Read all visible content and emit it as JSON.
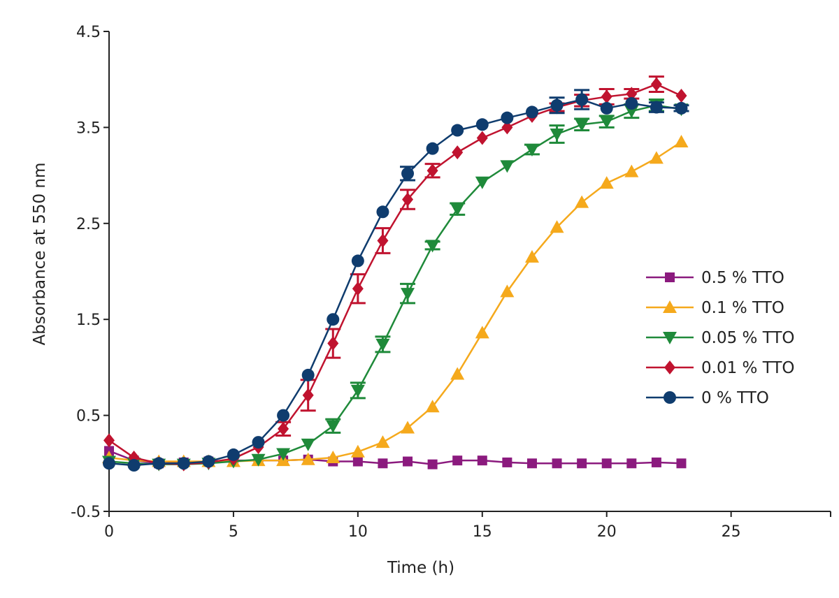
{
  "chart_data": {
    "type": "line",
    "xlabel": "Time (h)",
    "ylabel": "Absorbance at 550 nm",
    "xlim": [
      0,
      29
    ],
    "ylim": [
      -0.5,
      4.5
    ],
    "x_ticks": [
      "0",
      "5",
      "10",
      "15",
      "20",
      "25"
    ],
    "y_ticks": [
      "-0.5",
      "0.5",
      "1.5",
      "2.5",
      "3.5",
      "4.5"
    ],
    "grid": false,
    "legend_position": "right",
    "series": [
      {
        "name": "0.5 % TTO",
        "color": "#8B1A7E",
        "marker": "square",
        "x": [
          0,
          1,
          2,
          3,
          4,
          5,
          6,
          7,
          8,
          9,
          10,
          11,
          12,
          13,
          14,
          15,
          16,
          17,
          18,
          19,
          20,
          21,
          22,
          23
        ],
        "y": [
          0.13,
          0.03,
          0.0,
          0.01,
          0.02,
          0.03,
          0.03,
          0.03,
          0.04,
          0.02,
          0.02,
          0.0,
          0.02,
          -0.01,
          0.03,
          0.03,
          0.01,
          0.0,
          0.0,
          0.0,
          0.0,
          0.0,
          0.01,
          0.0
        ],
        "err": [
          0,
          0,
          0,
          0,
          0,
          0,
          0,
          0,
          0,
          0,
          0,
          0,
          0,
          0,
          0,
          0,
          0,
          0,
          0,
          0,
          0,
          0,
          0,
          0
        ]
      },
      {
        "name": "0.1 % TTO",
        "color": "#F5A91C",
        "marker": "triangle-up",
        "x": [
          0,
          1,
          2,
          3,
          4,
          5,
          6,
          7,
          8,
          9,
          10,
          11,
          12,
          13,
          14,
          15,
          16,
          17,
          18,
          19,
          20,
          21,
          22,
          23
        ],
        "y": [
          0.06,
          0.03,
          0.02,
          0.02,
          0.02,
          0.02,
          0.03,
          0.03,
          0.04,
          0.06,
          0.12,
          0.22,
          0.37,
          0.59,
          0.93,
          1.36,
          1.79,
          2.15,
          2.46,
          2.72,
          2.92,
          3.04,
          3.18,
          3.35
        ],
        "err": [
          0,
          0,
          0,
          0,
          0,
          0,
          0,
          0,
          0,
          0,
          0,
          0,
          0,
          0,
          0,
          0,
          0,
          0,
          0,
          0,
          0,
          0,
          0,
          0
        ]
      },
      {
        "name": "0.05 % TTO",
        "color": "#1F8A3A",
        "marker": "triangle-down",
        "x": [
          0,
          1,
          2,
          3,
          4,
          5,
          6,
          7,
          8,
          9,
          10,
          11,
          12,
          13,
          14,
          15,
          16,
          17,
          18,
          19,
          20,
          21,
          22,
          23
        ],
        "y": [
          0.02,
          0.0,
          -0.01,
          -0.01,
          0.0,
          0.02,
          0.04,
          0.1,
          0.2,
          0.39,
          0.76,
          1.24,
          1.77,
          2.27,
          2.65,
          2.93,
          3.1,
          3.27,
          3.43,
          3.53,
          3.56,
          3.67,
          3.73,
          3.69
        ],
        "err": [
          0,
          0,
          0,
          0,
          0,
          0,
          0,
          0,
          0,
          0.07,
          0.08,
          0.08,
          0.1,
          0.04,
          0.06,
          0,
          0,
          0.05,
          0.09,
          0.06,
          0.06,
          0.07,
          0.06,
          0
        ]
      },
      {
        "name": "0.01 % TTO",
        "color": "#C0132F",
        "marker": "diamond",
        "x": [
          0,
          1,
          2,
          3,
          4,
          5,
          6,
          7,
          8,
          9,
          10,
          11,
          12,
          13,
          14,
          15,
          16,
          17,
          18,
          19,
          20,
          21,
          22,
          23
        ],
        "y": [
          0.24,
          0.06,
          0.0,
          -0.01,
          0.01,
          0.05,
          0.17,
          0.36,
          0.71,
          1.25,
          1.82,
          2.32,
          2.75,
          3.05,
          3.24,
          3.39,
          3.5,
          3.62,
          3.71,
          3.78,
          3.82,
          3.85,
          3.95,
          3.83
        ],
        "err": [
          0,
          0,
          0,
          0,
          0,
          0,
          0,
          0.07,
          0.16,
          0.15,
          0.15,
          0.13,
          0.1,
          0.07,
          0,
          0,
          0,
          0,
          0.04,
          0.06,
          0.08,
          0.05,
          0.08,
          0
        ]
      },
      {
        "name": "0 % TTO",
        "color": "#0F3C6E",
        "marker": "circle",
        "x": [
          0,
          1,
          2,
          3,
          4,
          5,
          6,
          7,
          8,
          9,
          10,
          11,
          12,
          13,
          14,
          15,
          16,
          17,
          18,
          19,
          20,
          21,
          22,
          23
        ],
        "y": [
          0.0,
          -0.02,
          0.0,
          0.0,
          0.02,
          0.09,
          0.22,
          0.5,
          0.92,
          1.5,
          2.11,
          2.62,
          3.02,
          3.28,
          3.47,
          3.53,
          3.6,
          3.66,
          3.73,
          3.79,
          3.7,
          3.75,
          3.71,
          3.7
        ],
        "err": [
          0,
          0,
          0,
          0,
          0,
          0,
          0,
          0,
          0,
          0,
          0,
          0,
          0.07,
          0,
          0,
          0,
          0,
          0,
          0.08,
          0.1,
          0,
          0,
          0.05,
          0.03
        ]
      }
    ]
  }
}
